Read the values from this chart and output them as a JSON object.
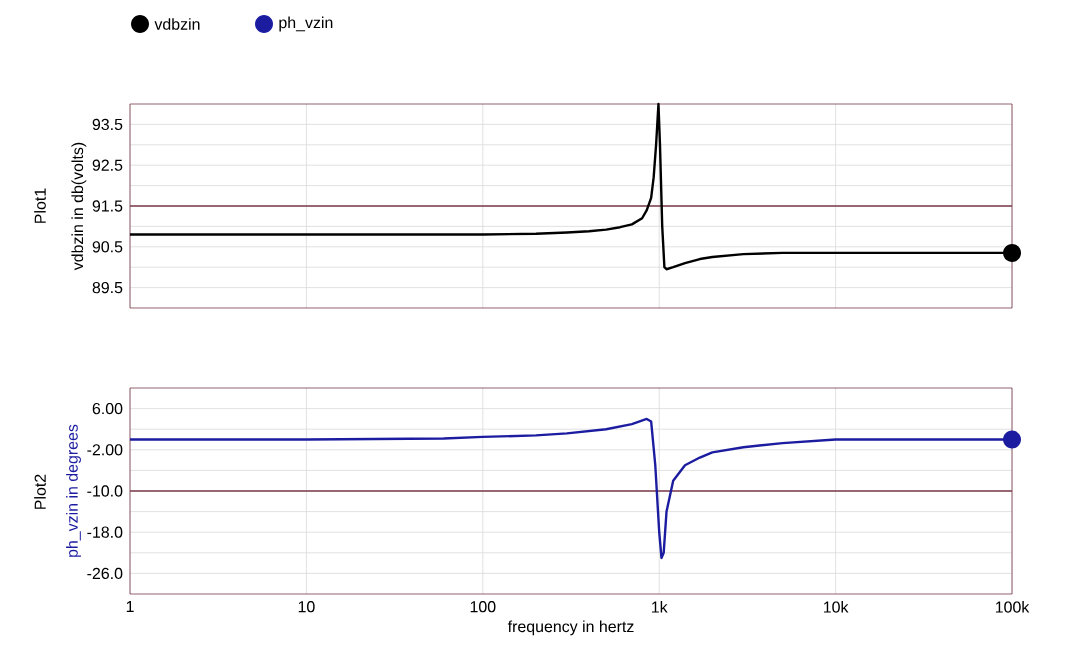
{
  "chart_data": [
    {
      "type": "line",
      "title": "Plot1",
      "ylabel": "vdbzin in db(volts)",
      "log": "x",
      "grid": true,
      "legend": "top left",
      "tick_labels": "y",
      "line_style": "solid",
      "xlim": [
        1,
        100000
      ],
      "xticks": [
        1,
        10,
        100,
        {
          "value": 1000,
          "label": null
        },
        {
          "value": 10000,
          "label": null
        },
        {
          "value": 100000,
          "label": null
        }
      ],
      "ylim": [
        89,
        94
      ],
      "yticks": [
        89.5,
        {
          "value": 90,
          "label": null
        },
        90.5,
        {
          "value": 91,
          "label": null
        },
        91.5,
        {
          "value": 92,
          "label": null
        },
        92.5,
        {
          "value": 93,
          "label": null
        },
        93.5
      ],
      "ref_lines": [
        {
          "axis": "y",
          "value": 91.5,
          "color": "#7a3a4a"
        }
      ],
      "x": [
        1,
        10,
        100,
        200,
        300,
        400,
        500,
        600,
        700,
        800,
        850,
        900,
        930,
        960,
        990,
        1010,
        1040,
        1070,
        1100,
        1200,
        1400,
        1700,
        2000,
        3000,
        5000,
        10000,
        100000
      ],
      "series": [
        {
          "name": "vdbzin",
          "color": "#000000",
          "values": [
            90.8,
            90.8,
            90.8,
            90.82,
            90.85,
            90.88,
            90.92,
            90.98,
            91.05,
            91.2,
            91.4,
            91.7,
            92.2,
            93.0,
            94.0,
            93.0,
            91.0,
            90.0,
            89.95,
            90.0,
            90.1,
            90.2,
            90.25,
            90.32,
            90.35,
            90.35,
            90.35
          ]
        }
      ]
    },
    {
      "type": "line",
      "title": "Plot2",
      "ylabel": "ph_vzin in degrees",
      "xlabel": "frequency in hertz",
      "log": "x",
      "grid": true,
      "legend": "top left",
      "line_style": "solid",
      "xlim": [
        1,
        100000
      ],
      "xticks": [
        1,
        10,
        100,
        {
          "value": 1000,
          "label": "1k"
        },
        {
          "value": 10000,
          "label": "10k"
        },
        {
          "value": 100000,
          "label": "100k"
        }
      ],
      "ylim": [
        -30,
        10
      ],
      "yticks": [
        {
          "value": -26,
          "label": "-26.0"
        },
        {
          "value": -22,
          "label": null
        },
        {
          "value": -18,
          "label": "-18.0"
        },
        {
          "value": -14,
          "label": null
        },
        {
          "value": -10,
          "label": "-10.0"
        },
        {
          "value": -6,
          "label": null
        },
        {
          "value": -2,
          "label": "-2.00"
        },
        {
          "value": 2,
          "label": null
        },
        {
          "value": 6,
          "label": "6.00"
        }
      ],
      "ref_lines": [
        {
          "axis": "y",
          "value": -10,
          "color": "#7a3a4a"
        }
      ],
      "x": [
        1,
        10,
        60,
        100,
        200,
        300,
        500,
        700,
        850,
        900,
        950,
        1000,
        1030,
        1060,
        1100,
        1200,
        1400,
        1700,
        2000,
        3000,
        5000,
        10000,
        100000
      ],
      "series": [
        {
          "name": "ph_vzin",
          "color": "#1c1ca0",
          "values": [
            0,
            0,
            0.2,
            0.5,
            0.8,
            1.2,
            2,
            3,
            4,
            3.5,
            -5,
            -18,
            -23,
            -22,
            -14,
            -8,
            -5,
            -3.5,
            -2.5,
            -1.5,
            -0.7,
            0,
            0
          ]
        }
      ]
    }
  ]
}
